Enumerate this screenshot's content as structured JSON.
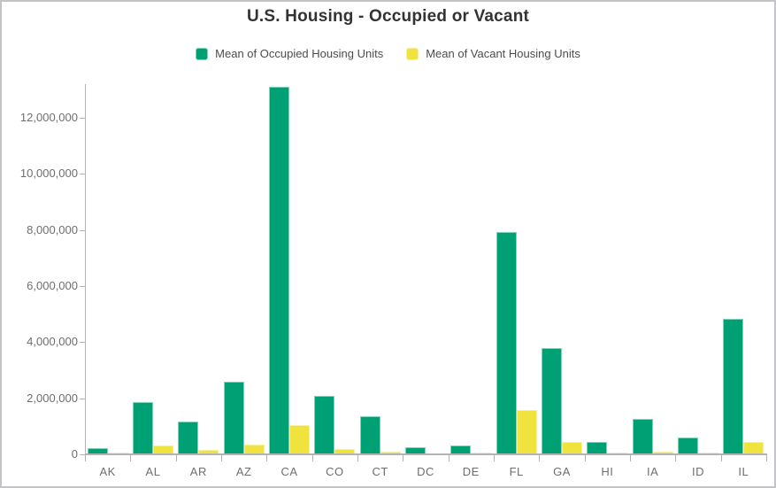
{
  "window": {
    "background": "#ffffff",
    "frame_color": "#c4c4c8"
  },
  "header": {
    "title": "U.S. Housing - Occupied or Vacant"
  },
  "legend": {
    "items": [
      {
        "label": "Mean of Occupied Housing Units",
        "color": "#00a075",
        "border": "#7ed3b8"
      },
      {
        "label": "Mean of Vacant Housing Units",
        "color": "#f0e33e",
        "border": "#f6ef9e"
      }
    ]
  },
  "axis": {
    "line_color": "#b3b3b3",
    "label_color": "#6e6e6e"
  },
  "chart_data": {
    "type": "bar",
    "title": "U.S. Housing - Occupied or Vacant",
    "categories": [
      "AK",
      "AL",
      "AR",
      "AZ",
      "CA",
      "CO",
      "CT",
      "DC",
      "DE",
      "FL",
      "GA",
      "HI",
      "IA",
      "ID",
      "IL"
    ],
    "series": [
      {
        "name": "Mean of Occupied Housing Units",
        "color": "#00a075",
        "border_color": "#7ed3b8",
        "values": [
          230000,
          1860000,
          1160000,
          2600000,
          13120000,
          2070000,
          1350000,
          250000,
          330000,
          7930000,
          3790000,
          430000,
          1250000,
          600000,
          4840000
        ]
      },
      {
        "name": "Mean of Vacant Housing Units",
        "color": "#f0e33e",
        "border_color": "#f6ef9e",
        "values": [
          50000,
          330000,
          160000,
          350000,
          1050000,
          180000,
          90000,
          30000,
          60000,
          1580000,
          440000,
          50000,
          85000,
          55000,
          440000
        ]
      }
    ],
    "xlabel": "",
    "ylabel": "",
    "ylim": [
      0,
      13200000
    ],
    "yticks": [
      0,
      2000000,
      4000000,
      6000000,
      8000000,
      10000000,
      12000000
    ],
    "ytick_labels": [
      "0",
      "2,000,000",
      "4,000,000",
      "6,000,000",
      "8,000,000",
      "10,000,000",
      "12,000,000"
    ],
    "grid": false,
    "legend_position": "top"
  }
}
